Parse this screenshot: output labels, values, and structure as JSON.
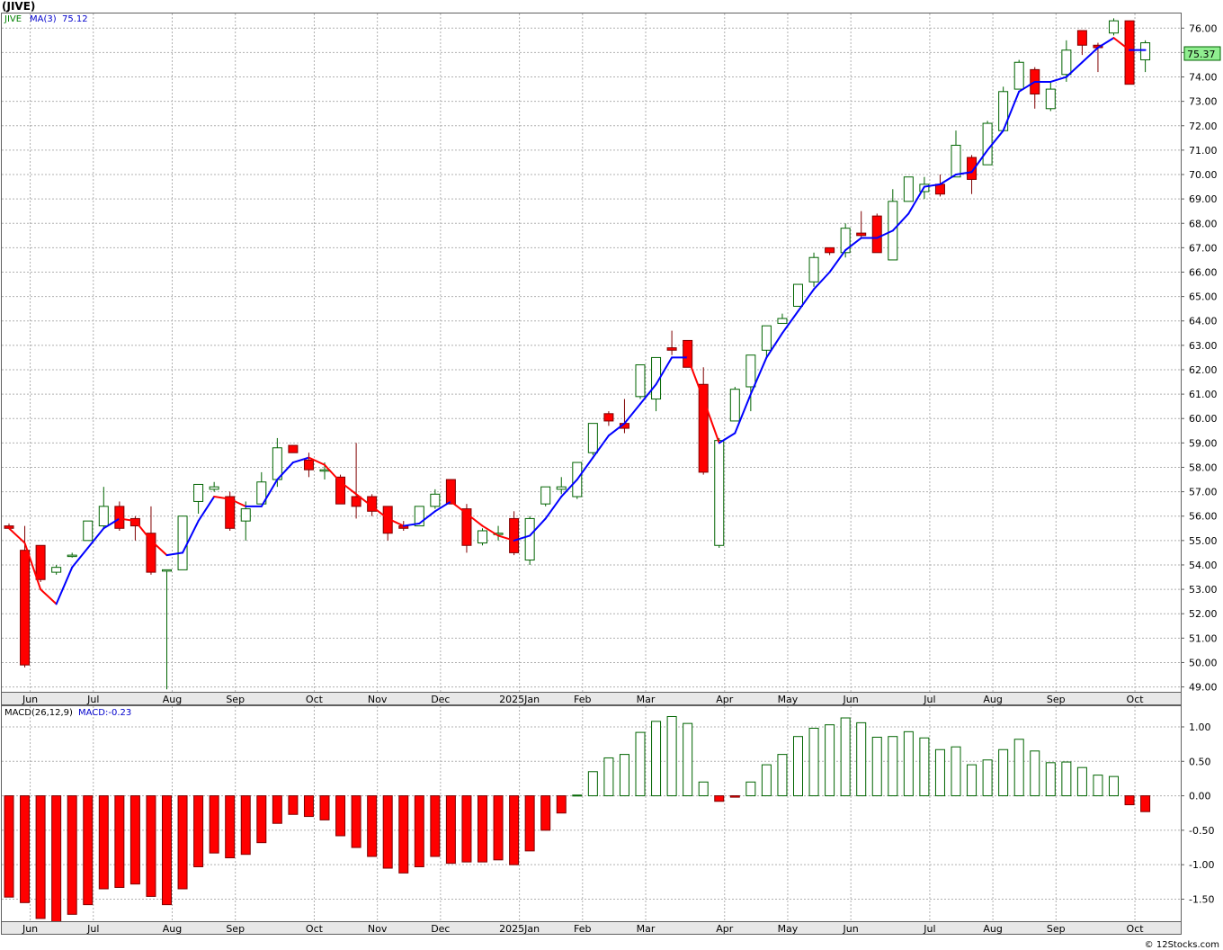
{
  "header": {
    "symbol_label": "(JIVE)"
  },
  "credit": "© 12Stocks.com",
  "chart_data": [
    {
      "type": "candlestick",
      "legend": {
        "symbol": "JIVE",
        "ma_label": "MA(3)",
        "ma_value": "75.12"
      },
      "last_price_label": "75.37",
      "ylim": [
        48.8,
        76.6
      ],
      "yticks": [
        "49.00",
        "50.00",
        "51.00",
        "52.00",
        "53.00",
        "54.00",
        "55.00",
        "56.00",
        "57.00",
        "58.00",
        "59.00",
        "60.00",
        "61.00",
        "62.00",
        "63.00",
        "64.00",
        "65.00",
        "66.00",
        "67.00",
        "68.00",
        "69.00",
        "70.00",
        "71.00",
        "72.00",
        "73.00",
        "74.00",
        "75.00",
        "76.00"
      ],
      "month_labels": [
        {
          "label": "Jun",
          "index": 1
        },
        {
          "label": "Jul",
          "index": 5
        },
        {
          "label": "Aug",
          "index": 10
        },
        {
          "label": "Sep",
          "index": 14
        },
        {
          "label": "Oct",
          "index": 19
        },
        {
          "label": "Nov",
          "index": 23
        },
        {
          "label": "Dec",
          "index": 27
        },
        {
          "label": "2025Jan",
          "index": 32
        },
        {
          "label": "Feb",
          "index": 36
        },
        {
          "label": "Mar",
          "index": 40
        },
        {
          "label": "Apr",
          "index": 45
        },
        {
          "label": "May",
          "index": 49
        },
        {
          "label": "Jun",
          "index": 53
        },
        {
          "label": "Jul",
          "index": 58
        },
        {
          "label": "Aug",
          "index": 62
        },
        {
          "label": "Sep",
          "index": 66
        },
        {
          "label": "Oct",
          "index": 71
        }
      ],
      "colors": {
        "up_fill": "#ffffff",
        "up_stroke": "#006400",
        "down_fill": "#ff0000",
        "down_stroke": "#800000",
        "ma_up": "#0000ff",
        "ma_down": "#ff0000",
        "grid": "#b0b0b0",
        "price_tag": "#90ee90"
      },
      "ohlc": [
        [
          55.6,
          55.7,
          55.5,
          55.5
        ],
        [
          54.6,
          55.6,
          49.8,
          49.9
        ],
        [
          54.8,
          54.8,
          53.3,
          53.4
        ],
        [
          53.7,
          54.0,
          53.6,
          53.9
        ],
        [
          54.4,
          54.5,
          54.3,
          54.4
        ],
        [
          55.0,
          55.8,
          55.0,
          55.8
        ],
        [
          55.6,
          57.2,
          55.5,
          56.4
        ],
        [
          56.4,
          56.6,
          55.4,
          55.5
        ],
        [
          55.9,
          56.0,
          55.0,
          55.6
        ],
        [
          55.3,
          56.4,
          53.6,
          53.7
        ],
        [
          53.8,
          53.8,
          48.9,
          53.8
        ],
        [
          53.8,
          56.0,
          53.8,
          56.0
        ],
        [
          56.6,
          57.3,
          56.1,
          57.3
        ],
        [
          57.1,
          57.4,
          57.0,
          57.2
        ],
        [
          56.8,
          57.0,
          55.4,
          55.5
        ],
        [
          55.8,
          56.6,
          55.0,
          56.3
        ],
        [
          56.5,
          57.8,
          56.5,
          57.4
        ],
        [
          57.5,
          59.2,
          57.2,
          58.8
        ],
        [
          58.9,
          58.9,
          58.6,
          58.6
        ],
        [
          58.3,
          58.6,
          57.6,
          57.9
        ],
        [
          57.9,
          58.2,
          57.5,
          57.9
        ],
        [
          57.6,
          57.7,
          56.5,
          56.5
        ],
        [
          56.8,
          59.0,
          55.9,
          56.4
        ],
        [
          56.8,
          56.9,
          56.0,
          56.2
        ],
        [
          56.4,
          56.4,
          55.0,
          55.3
        ],
        [
          55.6,
          55.8,
          55.4,
          55.5
        ],
        [
          55.6,
          56.4,
          55.6,
          56.4
        ],
        [
          56.4,
          57.1,
          56.3,
          56.9
        ],
        [
          57.5,
          57.5,
          56.5,
          56.5
        ],
        [
          56.3,
          56.5,
          54.5,
          54.8
        ],
        [
          54.9,
          55.5,
          54.8,
          55.4
        ],
        [
          55.3,
          55.6,
          55.0,
          55.3
        ],
        [
          55.9,
          56.2,
          54.4,
          54.5
        ],
        [
          54.2,
          56.0,
          54.0,
          55.9
        ],
        [
          56.5,
          57.2,
          56.4,
          57.2
        ],
        [
          57.1,
          57.6,
          56.9,
          57.2
        ],
        [
          56.8,
          58.2,
          56.7,
          58.2
        ],
        [
          58.6,
          59.8,
          58.5,
          59.8
        ],
        [
          60.2,
          60.3,
          59.7,
          59.9
        ],
        [
          59.8,
          60.8,
          59.4,
          59.6
        ],
        [
          60.9,
          62.2,
          60.8,
          62.2
        ],
        [
          60.8,
          62.5,
          60.3,
          62.5
        ],
        [
          62.9,
          63.6,
          62.6,
          62.8
        ],
        [
          63.2,
          63.2,
          62.1,
          62.1
        ],
        [
          61.4,
          62.1,
          57.7,
          57.8
        ],
        [
          54.8,
          59.2,
          54.7,
          59.1
        ],
        [
          59.9,
          61.3,
          59.9,
          61.2
        ],
        [
          61.3,
          62.6,
          60.3,
          62.6
        ],
        [
          62.8,
          63.8,
          62.5,
          63.8
        ],
        [
          63.9,
          64.3,
          63.9,
          64.1
        ],
        [
          64.6,
          65.5,
          64.6,
          65.5
        ],
        [
          65.6,
          66.8,
          65.4,
          66.6
        ],
        [
          67.0,
          67.0,
          66.7,
          66.8
        ],
        [
          66.8,
          68.0,
          66.6,
          67.8
        ],
        [
          67.6,
          68.5,
          67.4,
          67.5
        ],
        [
          68.3,
          68.4,
          66.8,
          66.8
        ],
        [
          66.5,
          69.4,
          66.5,
          68.9
        ],
        [
          68.9,
          69.9,
          68.9,
          69.9
        ],
        [
          69.3,
          69.9,
          69.0,
          69.6
        ],
        [
          69.6,
          70.0,
          69.1,
          69.2
        ],
        [
          69.9,
          71.8,
          69.9,
          71.2
        ],
        [
          70.7,
          70.8,
          69.2,
          69.8
        ],
        [
          70.4,
          72.2,
          70.4,
          72.1
        ],
        [
          71.8,
          73.6,
          71.8,
          73.4
        ],
        [
          73.5,
          74.7,
          73.5,
          74.6
        ],
        [
          74.3,
          74.4,
          72.7,
          73.3
        ],
        [
          72.7,
          73.8,
          72.6,
          73.5
        ],
        [
          74.1,
          75.5,
          73.8,
          75.1
        ],
        [
          75.9,
          75.9,
          74.9,
          75.3
        ],
        [
          75.3,
          75.4,
          74.2,
          75.2
        ],
        [
          75.8,
          76.4,
          75.7,
          76.3
        ],
        [
          76.3,
          76.3,
          73.7,
          73.7
        ],
        [
          74.7,
          75.5,
          74.2,
          75.4
        ]
      ],
      "ma": [
        null,
        null,
        53.0,
        52.4,
        53.9,
        54.7,
        55.5,
        55.9,
        55.8,
        55.0,
        54.4,
        54.5,
        55.8,
        56.8,
        56.7,
        56.4,
        56.4,
        57.5,
        58.2,
        58.4,
        58.1,
        57.4,
        56.9,
        56.4,
        55.9,
        55.6,
        55.7,
        56.2,
        56.6,
        56.1,
        55.6,
        55.2,
        55.0,
        55.2,
        55.9,
        56.8,
        57.5,
        58.4,
        59.3,
        59.8,
        60.6,
        61.4,
        62.5,
        62.5,
        60.8,
        59.0,
        59.4,
        61.0,
        62.5,
        63.5,
        64.4,
        65.3,
        66.0,
        66.9,
        67.4,
        67.4,
        67.7,
        68.4,
        69.5,
        69.6,
        70.0,
        70.1,
        71.0,
        71.8,
        73.4,
        73.8,
        73.8,
        74.0,
        74.6,
        75.2,
        75.6,
        75.1,
        75.1
      ]
    },
    {
      "type": "bar",
      "legend": {
        "label": "MACD(26,12,9)",
        "value_label": "MACD:-0.23"
      },
      "ylim": [
        -1.82,
        1.3
      ],
      "yticks": [
        "-1.50",
        "-1.00",
        "-0.50",
        "0.00",
        "0.50",
        "1.00"
      ],
      "colors": {
        "positive_fill": "#ffffff",
        "positive_stroke": "#006400",
        "negative_fill": "#ff0000",
        "negative_stroke": "#800000"
      },
      "values": [
        -1.47,
        -1.55,
        -1.78,
        -1.85,
        -1.72,
        -1.58,
        -1.35,
        -1.33,
        -1.28,
        -1.46,
        -1.58,
        -1.35,
        -1.03,
        -0.83,
        -0.9,
        -0.85,
        -0.68,
        -0.4,
        -0.27,
        -0.3,
        -0.35,
        -0.58,
        -0.75,
        -0.88,
        -1.05,
        -1.12,
        -1.03,
        -0.88,
        -0.98,
        -0.96,
        -0.96,
        -0.93,
        -1.0,
        -0.8,
        -0.5,
        -0.25,
        0.01,
        0.35,
        0.55,
        0.6,
        0.92,
        1.08,
        1.15,
        1.05,
        0.2,
        -0.08,
        -0.02,
        0.2,
        0.45,
        0.6,
        0.86,
        0.98,
        1.03,
        1.13,
        1.06,
        0.85,
        0.86,
        0.93,
        0.84,
        0.67,
        0.71,
        0.45,
        0.52,
        0.67,
        0.82,
        0.65,
        0.48,
        0.49,
        0.41,
        0.3,
        0.28,
        -0.13,
        -0.23
      ]
    }
  ]
}
